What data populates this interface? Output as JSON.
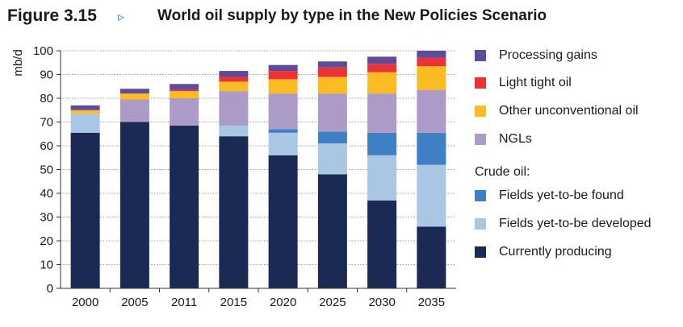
{
  "figure": {
    "label": "Figure 3.15",
    "arrow": "▹",
    "title": "World oil supply by type in the New Policies Scenario"
  },
  "chart_data": {
    "type": "bar",
    "stacked": true,
    "title": "World oil supply by type in the New Policies Scenario",
    "ylabel": "mb/d",
    "xlabel": "",
    "ylim": [
      0,
      100
    ],
    "yticks": [
      0,
      10,
      20,
      30,
      40,
      50,
      60,
      70,
      80,
      90,
      100
    ],
    "grid": true,
    "legend_placement": "right",
    "categories": [
      "2000",
      "2005",
      "2011",
      "2015",
      "2020",
      "2025",
      "2030",
      "2035"
    ],
    "series": [
      {
        "name": "Currently producing",
        "color": "#1b2a55",
        "values": [
          65.5,
          70,
          68.5,
          64,
          56,
          48,
          37,
          26
        ]
      },
      {
        "name": "Fields yet-to-be developed",
        "color": "#a9c6e2",
        "values": [
          8,
          0,
          0,
          4.5,
          9.5,
          13,
          19,
          26
        ]
      },
      {
        "name": "Fields yet-to-be found",
        "color": "#3f7fc4",
        "values": [
          0,
          0,
          0,
          0,
          1.5,
          5,
          9.5,
          13.5
        ]
      },
      {
        "name": "NGLs",
        "color": "#ab9bc6",
        "values": [
          0,
          9.5,
          11.5,
          14.5,
          15,
          16,
          16.5,
          18
        ]
      },
      {
        "name": "Other unconventional oil",
        "color": "#fbbb22",
        "values": [
          1.5,
          2.5,
          3,
          4,
          6,
          7,
          9,
          10
        ]
      },
      {
        "name": "Light tight oil",
        "color": "#ec3237",
        "values": [
          0,
          0,
          0.5,
          2,
          3.5,
          4,
          3.5,
          3.5
        ]
      },
      {
        "name": "Processing gains",
        "color": "#5f4b9a",
        "values": [
          2,
          2,
          2.5,
          2.5,
          2.5,
          2.5,
          3,
          3
        ]
      }
    ]
  },
  "legend": {
    "items": [
      {
        "label": "Processing gains",
        "color": "#5f4b9a"
      },
      {
        "label": "Light tight oil",
        "color": "#ec3237"
      },
      {
        "label": "Other unconventional oil",
        "color": "#fbbb22"
      },
      {
        "label": "NGLs",
        "color": "#ab9bc6"
      }
    ],
    "crude_heading": "Crude oil:",
    "crude_items": [
      {
        "label": "Fields yet-to-be found",
        "color": "#3f7fc4"
      },
      {
        "label": "Fields yet-to-be developed",
        "color": "#a9c6e2"
      },
      {
        "label": "Currently producing",
        "color": "#1b2a55"
      }
    ]
  }
}
